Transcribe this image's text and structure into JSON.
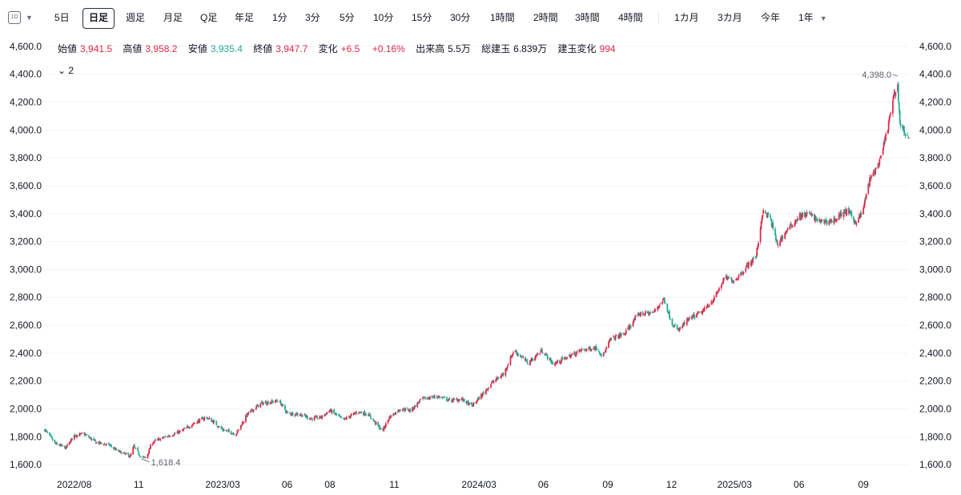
{
  "toolbar": {
    "interval_icon": "1D",
    "buttons": [
      {
        "label": "5日",
        "active": false
      },
      {
        "label": "日足",
        "active": true
      },
      {
        "label": "週足",
        "active": false
      },
      {
        "label": "月足",
        "active": false
      },
      {
        "label": "Q足",
        "active": false
      },
      {
        "label": "年足",
        "active": false
      },
      {
        "label": "1分",
        "active": false
      },
      {
        "label": "3分",
        "active": false
      },
      {
        "label": "5分",
        "active": false
      },
      {
        "label": "10分",
        "active": false
      },
      {
        "label": "15分",
        "active": false
      },
      {
        "label": "30分",
        "active": false
      },
      {
        "label": "1時間",
        "active": false
      },
      {
        "label": "2時間",
        "active": false
      },
      {
        "label": "3時間",
        "active": false
      },
      {
        "label": "4時間",
        "active": false
      },
      {
        "label": "1カ月",
        "active": false
      },
      {
        "label": "3カ月",
        "active": false
      },
      {
        "label": "今年",
        "active": false
      },
      {
        "label": "1年",
        "active": false
      }
    ]
  },
  "legend": {
    "open_label": "始値",
    "open": "3,941.5",
    "high_label": "高値",
    "high": "3,958.2",
    "low_label": "安値",
    "low": "3,935.4",
    "close_label": "終値",
    "close": "3,947.7",
    "change_label": "変化",
    "change": "+6.5",
    "change_pct": "+0.16%",
    "volume_label": "出来高",
    "volume": "5.5万",
    "oi_label": "総建玉",
    "oi": "6.839万",
    "oi_change_label": "建玉変化",
    "oi_change": "994"
  },
  "indicator_toggle": "2",
  "colors": {
    "up": "#e0294a",
    "down": "#22ab94",
    "grid": "#f0f3fa",
    "text": "#131722",
    "wick": "#787b86"
  },
  "chart_data": {
    "type": "candlestick",
    "y_ticks": [
      1600,
      1800,
      2000,
      2200,
      2400,
      2600,
      2800,
      3000,
      3200,
      3400,
      3600,
      3800,
      4000,
      4200,
      4400,
      4600
    ],
    "y_tick_labels": [
      "1,600.0",
      "1,800.0",
      "2,000.0",
      "2,200.0",
      "2,400.0",
      "2,600.0",
      "2,800.0",
      "3,000.0",
      "3,200.0",
      "3,400.0",
      "3,600.0",
      "3,800.0",
      "4,000.0",
      "4,200.0",
      "4,400.0",
      "4,600.0"
    ],
    "ylim": [
      1520,
      4680
    ],
    "x_ticks": [
      {
        "label": "2022/08",
        "date": "2022-08-01"
      },
      {
        "label": "11",
        "date": "2022-11-01"
      },
      {
        "label": "2023/03",
        "date": "2023-03-01"
      },
      {
        "label": "06",
        "date": "2023-06-01"
      },
      {
        "label": "08",
        "date": "2023-08-01"
      },
      {
        "label": "11",
        "date": "2023-11-01"
      },
      {
        "label": "2024/03",
        "date": "2024-03-01"
      },
      {
        "label": "06",
        "date": "2024-06-01"
      },
      {
        "label": "09",
        "date": "2024-09-01"
      },
      {
        "label": "12",
        "date": "2024-12-01"
      },
      {
        "label": "2025/03",
        "date": "2025-03-01"
      },
      {
        "label": "06",
        "date": "2025-06-01"
      },
      {
        "label": "09",
        "date": "2025-09-01"
      }
    ],
    "x_range": [
      "2022-06-20",
      "2025-11-05"
    ],
    "path": [
      [
        "2022-06-20",
        1850
      ],
      [
        "2022-07-05",
        1750
      ],
      [
        "2022-07-20",
        1720
      ],
      [
        "2022-08-01",
        1810
      ],
      [
        "2022-08-15",
        1820
      ],
      [
        "2022-09-01",
        1760
      ],
      [
        "2022-09-20",
        1740
      ],
      [
        "2022-10-01",
        1700
      ],
      [
        "2022-10-20",
        1660
      ],
      [
        "2022-10-25",
        1730
      ],
      [
        "2022-11-05",
        1650
      ],
      [
        "2022-11-12",
        1650
      ],
      [
        "2022-11-20",
        1760
      ],
      [
        "2022-12-10",
        1800
      ],
      [
        "2023-01-01",
        1840
      ],
      [
        "2023-01-20",
        1900
      ],
      [
        "2023-02-05",
        1940
      ],
      [
        "2023-02-15",
        1910
      ],
      [
        "2023-03-01",
        1850
      ],
      [
        "2023-03-20",
        1820
      ],
      [
        "2023-04-05",
        1960
      ],
      [
        "2023-04-25",
        2040
      ],
      [
        "2023-05-10",
        2050
      ],
      [
        "2023-05-20",
        2060
      ],
      [
        "2023-06-01",
        1970
      ],
      [
        "2023-06-20",
        1960
      ],
      [
        "2023-07-05",
        1930
      ],
      [
        "2023-07-20",
        1940
      ],
      [
        "2023-08-01",
        1990
      ],
      [
        "2023-08-20",
        1920
      ],
      [
        "2023-09-10",
        1980
      ],
      [
        "2023-09-25",
        1960
      ],
      [
        "2023-10-05",
        1900
      ],
      [
        "2023-10-15",
        1840
      ],
      [
        "2023-10-25",
        1940
      ],
      [
        "2023-11-10",
        2000
      ],
      [
        "2023-11-25",
        1990
      ],
      [
        "2023-12-10",
        2070
      ],
      [
        "2024-01-01",
        2090
      ],
      [
        "2024-01-20",
        2060
      ],
      [
        "2024-02-05",
        2070
      ],
      [
        "2024-02-20",
        2020
      ],
      [
        "2024-03-05",
        2100
      ],
      [
        "2024-03-20",
        2190
      ],
      [
        "2024-04-05",
        2250
      ],
      [
        "2024-04-20",
        2420
      ],
      [
        "2024-05-10",
        2330
      ],
      [
        "2024-05-30",
        2420
      ],
      [
        "2024-06-15",
        2320
      ],
      [
        "2024-07-05",
        2370
      ],
      [
        "2024-07-25",
        2420
      ],
      [
        "2024-08-15",
        2440
      ],
      [
        "2024-08-25",
        2380
      ],
      [
        "2024-09-05",
        2500
      ],
      [
        "2024-09-25",
        2540
      ],
      [
        "2024-10-15",
        2680
      ],
      [
        "2024-11-05",
        2690
      ],
      [
        "2024-11-20",
        2790
      ],
      [
        "2024-12-01",
        2620
      ],
      [
        "2024-12-10",
        2560
      ],
      [
        "2024-12-25",
        2640
      ],
      [
        "2025-01-15",
        2700
      ],
      [
        "2025-02-01",
        2800
      ],
      [
        "2025-02-15",
        2940
      ],
      [
        "2025-03-01",
        2920
      ],
      [
        "2025-03-15",
        3000
      ],
      [
        "2025-04-01",
        3100
      ],
      [
        "2025-04-10",
        3410
      ],
      [
        "2025-04-20",
        3380
      ],
      [
        "2025-05-01",
        3180
      ],
      [
        "2025-05-15",
        3280
      ],
      [
        "2025-06-01",
        3380
      ],
      [
        "2025-06-15",
        3400
      ],
      [
        "2025-07-01",
        3340
      ],
      [
        "2025-07-20",
        3350
      ],
      [
        "2025-08-01",
        3400
      ],
      [
        "2025-08-10",
        3420
      ],
      [
        "2025-08-20",
        3340
      ],
      [
        "2025-08-30",
        3400
      ],
      [
        "2025-09-10",
        3640
      ],
      [
        "2025-09-25",
        3780
      ],
      [
        "2025-10-05",
        4000
      ],
      [
        "2025-10-15",
        4250
      ],
      [
        "2025-10-20",
        4320
      ],
      [
        "2025-10-23",
        4050
      ],
      [
        "2025-10-28",
        4000
      ],
      [
        "2025-11-03",
        3950
      ]
    ],
    "annotations": [
      {
        "label": "4,398.0",
        "date": "2025-10-20",
        "value": 4398
      },
      {
        "label": "1,618.4",
        "date": "2022-11-05",
        "value": 1618.4
      }
    ]
  }
}
